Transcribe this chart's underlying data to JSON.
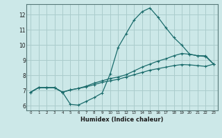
{
  "xlabel": "Humidex (Indice chaleur)",
  "bg_color": "#cce8e8",
  "grid_color": "#aacccc",
  "line_color": "#1a6b6b",
  "xlim": [
    -0.5,
    23.5
  ],
  "ylim": [
    5.7,
    12.7
  ],
  "xticks": [
    0,
    1,
    2,
    3,
    4,
    5,
    6,
    7,
    8,
    9,
    10,
    11,
    12,
    13,
    14,
    15,
    16,
    17,
    18,
    19,
    20,
    21,
    22,
    23
  ],
  "yticks": [
    6,
    7,
    8,
    9,
    10,
    11,
    12
  ],
  "hours": [
    0,
    1,
    2,
    3,
    4,
    5,
    6,
    7,
    8,
    9,
    10,
    11,
    12,
    13,
    14,
    15,
    16,
    17,
    18,
    19,
    20,
    21,
    22,
    23
  ],
  "line1": [
    6.9,
    7.2,
    7.2,
    7.2,
    6.9,
    6.1,
    6.05,
    6.3,
    6.55,
    6.85,
    8.1,
    9.85,
    10.75,
    11.65,
    12.2,
    12.45,
    11.85,
    11.15,
    10.5,
    10.0,
    9.4,
    9.3,
    9.3,
    8.75
  ],
  "line2": [
    6.9,
    7.2,
    7.2,
    7.2,
    6.9,
    7.05,
    7.15,
    7.3,
    7.5,
    7.65,
    7.8,
    7.9,
    8.05,
    8.3,
    8.55,
    8.75,
    8.95,
    9.1,
    9.3,
    9.45,
    9.4,
    9.3,
    9.25,
    8.75
  ],
  "line3": [
    6.9,
    7.2,
    7.2,
    7.2,
    6.9,
    7.05,
    7.15,
    7.25,
    7.4,
    7.55,
    7.65,
    7.75,
    7.9,
    8.05,
    8.2,
    8.35,
    8.45,
    8.55,
    8.65,
    8.72,
    8.7,
    8.65,
    8.6,
    8.75
  ]
}
